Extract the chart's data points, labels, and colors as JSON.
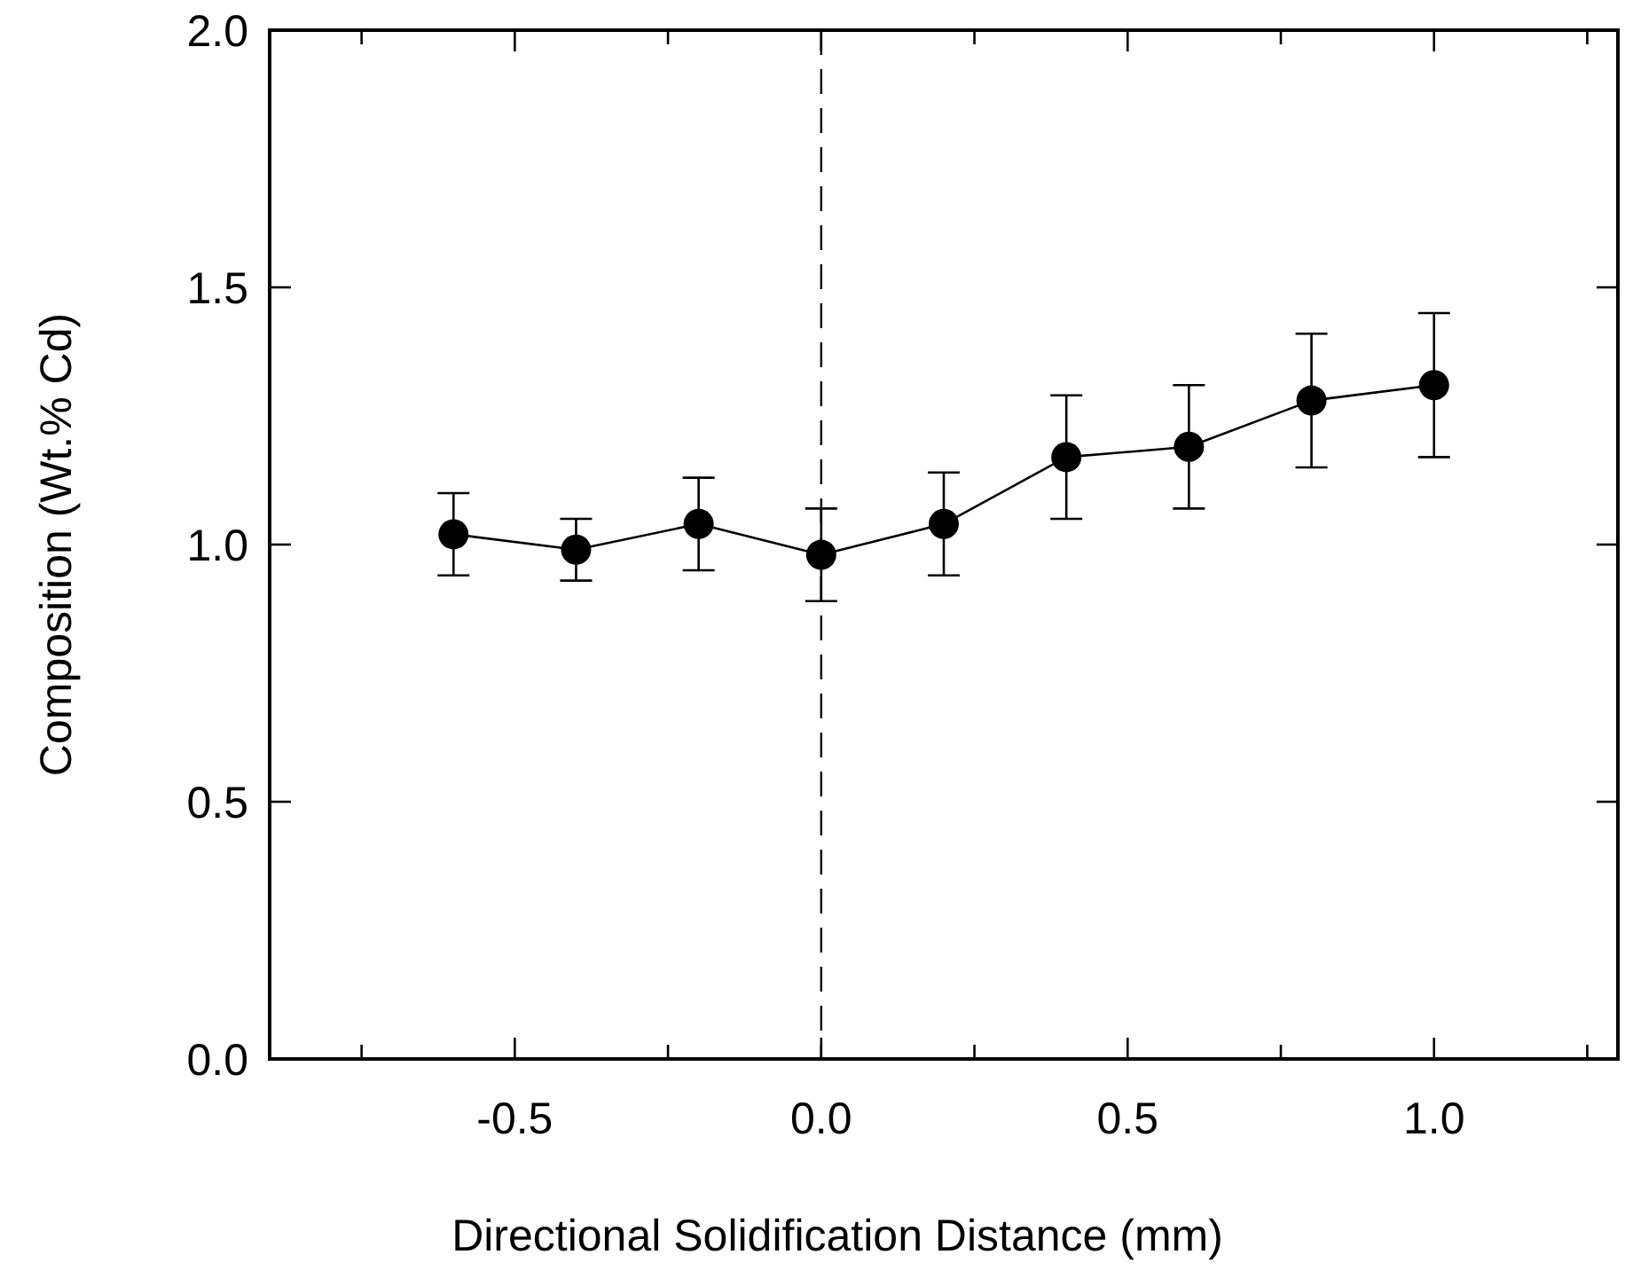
{
  "chart_data": {
    "type": "line",
    "xlabel": "Directional Solidification Distance (mm)",
    "ylabel": "Composition (Wt.% Cd)",
    "x": [
      -0.6,
      -0.4,
      -0.2,
      0.0,
      0.2,
      0.4,
      0.6,
      0.8,
      1.0
    ],
    "series": [
      {
        "color": "#000000",
        "values": [
          1.02,
          0.99,
          1.04,
          0.98,
          1.04,
          1.17,
          1.19,
          1.28,
          1.31
        ],
        "errors": [
          [
            0.94,
            1.1
          ],
          [
            0.93,
            1.05
          ],
          [
            0.95,
            1.13
          ],
          [
            0.89,
            1.07
          ],
          [
            0.94,
            1.14
          ],
          [
            1.05,
            1.29
          ],
          [
            1.07,
            1.31
          ],
          [
            1.15,
            1.41
          ],
          [
            1.17,
            1.45
          ]
        ]
      }
    ],
    "xlim": [
      -0.9,
      1.3
    ],
    "xticks": [
      {
        "value": -0.75,
        "label": null
      },
      -0.5,
      {
        "value": -0.25,
        "label": null
      },
      {
        "value": 0,
        "label": "0.0"
      },
      {
        "value": 0.25,
        "label": null
      },
      0.5,
      {
        "value": 0.75,
        "label": null
      },
      {
        "value": 1,
        "label": "1.0"
      },
      {
        "value": 1.25,
        "label": null
      }
    ],
    "ylim": [
      0,
      2
    ],
    "yticks": [
      {
        "value": 0,
        "label": "0.0"
      },
      {
        "value": 0.5,
        "label": "0.5"
      },
      {
        "value": 1,
        "label": "1.0"
      },
      {
        "value": 1.5,
        "label": "1.5"
      },
      {
        "value": 2,
        "label": "2.0"
      }
    ],
    "ref_lines": [
      {
        "axis": "x",
        "value": 0,
        "line_style": "dashed"
      }
    ],
    "marker": "circle",
    "line_style": "solid"
  }
}
